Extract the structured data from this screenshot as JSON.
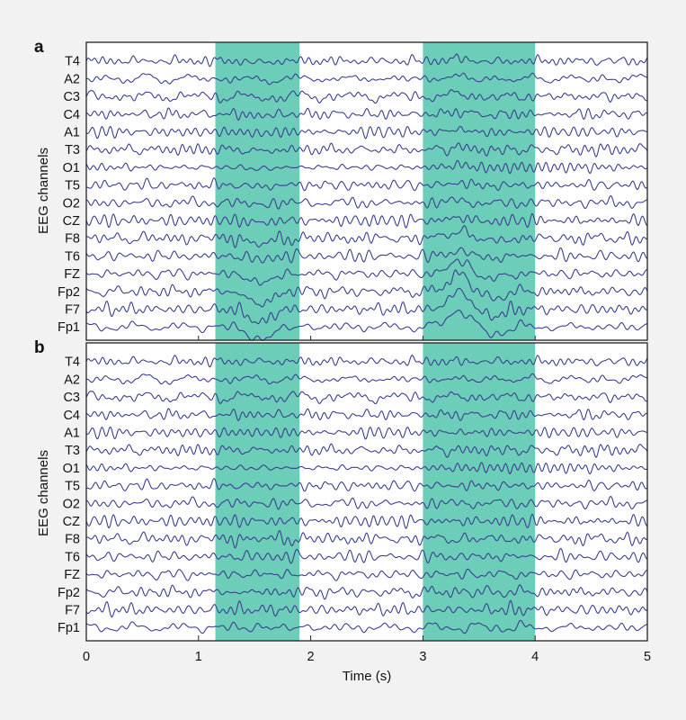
{
  "chart_data": [
    {
      "type": "line",
      "panel_label": "a",
      "ylabel": "EEG channels",
      "channels": [
        "T4",
        "A2",
        "C3",
        "C4",
        "A1",
        "T3",
        "O1",
        "T5",
        "O2",
        "CZ",
        "F8",
        "T6",
        "FZ",
        "Fp2",
        "F7",
        "Fp1"
      ],
      "highlight_intervals": [
        [
          1.15,
          1.9
        ],
        [
          3.0,
          4.0
        ]
      ],
      "xlim": [
        0,
        5
      ],
      "artifact": "eye-blink artifacts present (large deflections in frontal channels)",
      "artifact_strength": 1
    },
    {
      "type": "line",
      "panel_label": "b",
      "ylabel": "EEG channels",
      "channels": [
        "T4",
        "A2",
        "C3",
        "C4",
        "A1",
        "T3",
        "O1",
        "T5",
        "O2",
        "CZ",
        "F8",
        "T6",
        "FZ",
        "Fp2",
        "F7",
        "Fp1"
      ],
      "highlight_intervals": [
        [
          1.15,
          1.9
        ],
        [
          3.0,
          4.0
        ]
      ],
      "xlim": [
        0,
        5
      ],
      "artifact": "artifacts removed",
      "artifact_strength": 0
    }
  ],
  "x_axis": {
    "label": "Time (s)",
    "ticks": [
      "0",
      "1",
      "2",
      "3",
      "4",
      "5"
    ],
    "tick_values": [
      0,
      1,
      2,
      3,
      4,
      5
    ]
  },
  "colors": {
    "trace": "#3b3f8f",
    "highlight": "#6ccdb8",
    "frame": "#222222",
    "background": "#f2f2f2",
    "plot_bg": "#ffffff"
  }
}
